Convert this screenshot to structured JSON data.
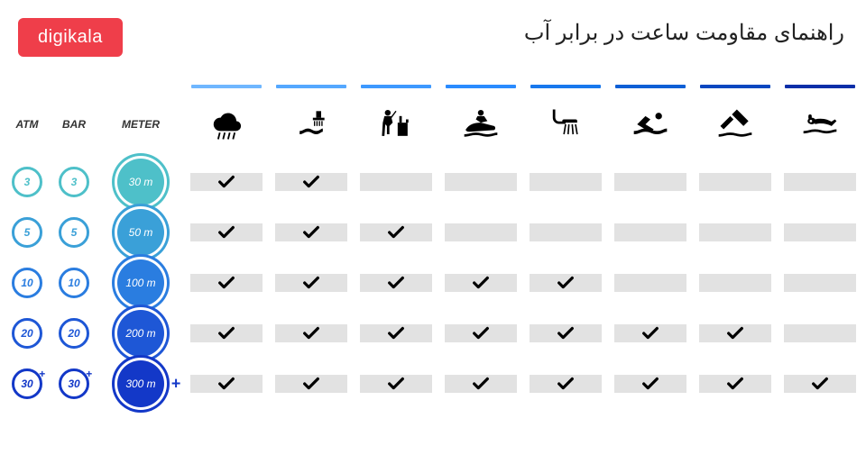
{
  "brand": {
    "label": "digikala",
    "bg": "#ef3e4a",
    "color": "#ffffff"
  },
  "title": "راهنمای مقاومت ساعت در برابر آب",
  "unit_headers": [
    "ATM",
    "BAR",
    "METER"
  ],
  "activities": [
    {
      "id": "rain",
      "bar_color": "#6fb7ff"
    },
    {
      "id": "wash",
      "bar_color": "#55a8ff"
    },
    {
      "id": "fishing",
      "bar_color": "#3d99ff"
    },
    {
      "id": "jetski",
      "bar_color": "#2a8bff"
    },
    {
      "id": "shower",
      "bar_color": "#1878ed"
    },
    {
      "id": "swimming",
      "bar_color": "#0d5fd6"
    },
    {
      "id": "snorkel",
      "bar_color": "#0847c0"
    },
    {
      "id": "scuba",
      "bar_color": "#0b2ea8"
    }
  ],
  "rows": [
    {
      "atm": "3",
      "bar": "3",
      "meter": "30 m",
      "ring": "#4ec0c9",
      "fill": "#4ec0c9",
      "plus": false,
      "checks": [
        1,
        1,
        0,
        0,
        0,
        0,
        0,
        0
      ]
    },
    {
      "atm": "5",
      "bar": "5",
      "meter": "50 m",
      "ring": "#3aa0d8",
      "fill": "#3aa0d8",
      "plus": false,
      "checks": [
        1,
        1,
        1,
        0,
        0,
        0,
        0,
        0
      ]
    },
    {
      "atm": "10",
      "bar": "10",
      "meter": "100 m",
      "ring": "#2a7de0",
      "fill": "#2a7de0",
      "plus": false,
      "checks": [
        1,
        1,
        1,
        1,
        1,
        0,
        0,
        0
      ]
    },
    {
      "atm": "20",
      "bar": "20",
      "meter": "200 m",
      "ring": "#1e57d6",
      "fill": "#1e57d6",
      "plus": false,
      "checks": [
        1,
        1,
        1,
        1,
        1,
        1,
        1,
        0
      ]
    },
    {
      "atm": "30",
      "bar": "30",
      "meter": "300 m",
      "ring": "#1338c8",
      "fill": "#1338c8",
      "plus": true,
      "checks": [
        1,
        1,
        1,
        1,
        1,
        1,
        1,
        1
      ]
    }
  ],
  "cell_bg": "#e2e2e2",
  "check_color": "#000000",
  "icon_color": "#000000"
}
